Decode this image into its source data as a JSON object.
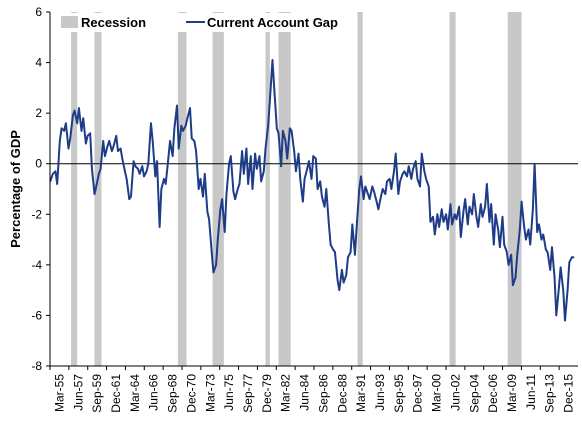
{
  "chart_data": {
    "type": "line",
    "ylabel": "Percentage of GDP",
    "ylim": [
      -8,
      6
    ],
    "yticks": [
      6,
      4,
      2,
      0,
      -2,
      -4,
      -6,
      -8
    ],
    "xlim": [
      1955.17,
      2016.0
    ],
    "xtick_labels": [
      "Mar-55",
      "Jun-57",
      "Sep-59",
      "Dec-61",
      "Mar-64",
      "Jun-66",
      "Sep-68",
      "Dec-70",
      "Mar-73",
      "Jun-75",
      "Sep-77",
      "Dec-79",
      "Mar-82",
      "Jun-84",
      "Sep-86",
      "Dec-88",
      "Mar-91",
      "Jun-93",
      "Sep-95",
      "Dec-97",
      "Mar-00",
      "Jun-02",
      "Sep-04",
      "Dec-06",
      "Mar-09",
      "Jun-11",
      "Sep-13",
      "Dec-15"
    ],
    "legend": {
      "position": "top-left",
      "items": [
        {
          "name": "Recession",
          "kind": "band",
          "color": "#c8c8c8"
        },
        {
          "name": "Current Account Gap",
          "kind": "line",
          "color": "#1f3c88"
        }
      ]
    },
    "grid": false,
    "recessions": [
      {
        "start": 1957.6,
        "end": 1958.3
      },
      {
        "start": 1960.3,
        "end": 1961.1
      },
      {
        "start": 1969.9,
        "end": 1970.9
      },
      {
        "start": 1973.9,
        "end": 1975.2
      },
      {
        "start": 1980.0,
        "end": 1980.5
      },
      {
        "start": 1981.5,
        "end": 1982.9
      },
      {
        "start": 1990.6,
        "end": 1991.2
      },
      {
        "start": 2001.2,
        "end": 2001.9
      },
      {
        "start": 2007.9,
        "end": 2009.5
      }
    ],
    "series": [
      {
        "name": "Current Account Gap",
        "color": "#1f3c88",
        "points": [
          [
            1955.2,
            -0.7
          ],
          [
            1955.5,
            -0.4
          ],
          [
            1955.8,
            -0.3
          ],
          [
            1956.0,
            -0.8
          ],
          [
            1956.3,
            0.9
          ],
          [
            1956.5,
            1.4
          ],
          [
            1956.8,
            1.3
          ],
          [
            1957.0,
            1.6
          ],
          [
            1957.3,
            0.6
          ],
          [
            1957.5,
            1.0
          ],
          [
            1957.8,
            1.9
          ],
          [
            1958.0,
            2.1
          ],
          [
            1958.3,
            1.6
          ],
          [
            1958.5,
            2.2
          ],
          [
            1958.8,
            1.3
          ],
          [
            1959.0,
            1.8
          ],
          [
            1959.3,
            0.8
          ],
          [
            1959.5,
            1.1
          ],
          [
            1959.8,
            1.2
          ],
          [
            1960.0,
            -0.2
          ],
          [
            1960.3,
            -1.2
          ],
          [
            1960.5,
            -0.9
          ],
          [
            1960.8,
            -0.4
          ],
          [
            1961.0,
            -0.2
          ],
          [
            1961.3,
            0.9
          ],
          [
            1961.5,
            0.3
          ],
          [
            1961.8,
            0.7
          ],
          [
            1962.0,
            0.9
          ],
          [
            1962.3,
            0.5
          ],
          [
            1962.5,
            0.7
          ],
          [
            1962.8,
            1.1
          ],
          [
            1963.0,
            0.5
          ],
          [
            1963.3,
            0.6
          ],
          [
            1963.5,
            0.2
          ],
          [
            1963.8,
            -0.3
          ],
          [
            1964.0,
            -0.6
          ],
          [
            1964.3,
            -1.4
          ],
          [
            1964.5,
            -1.3
          ],
          [
            1964.8,
            0.1
          ],
          [
            1965.0,
            -0.1
          ],
          [
            1965.3,
            -0.2
          ],
          [
            1965.5,
            -0.4
          ],
          [
            1965.8,
            -0.1
          ],
          [
            1966.0,
            -0.5
          ],
          [
            1966.3,
            -0.3
          ],
          [
            1966.5,
            0.0
          ],
          [
            1966.8,
            1.6
          ],
          [
            1967.0,
            0.9
          ],
          [
            1967.3,
            -0.5
          ],
          [
            1967.5,
            0.1
          ],
          [
            1967.8,
            -2.5
          ],
          [
            1968.0,
            -1.0
          ],
          [
            1968.3,
            -0.6
          ],
          [
            1968.5,
            -0.8
          ],
          [
            1968.8,
            0.2
          ],
          [
            1969.0,
            0.9
          ],
          [
            1969.3,
            0.3
          ],
          [
            1969.5,
            1.4
          ],
          [
            1969.8,
            2.3
          ],
          [
            1970.0,
            0.6
          ],
          [
            1970.3,
            1.5
          ],
          [
            1970.5,
            1.3
          ],
          [
            1970.8,
            1.5
          ],
          [
            1971.0,
            1.8
          ],
          [
            1971.3,
            2.2
          ],
          [
            1971.5,
            1.0
          ],
          [
            1971.8,
            0.9
          ],
          [
            1972.0,
            0.5
          ],
          [
            1972.3,
            -1.0
          ],
          [
            1972.5,
            -0.6
          ],
          [
            1972.8,
            -1.3
          ],
          [
            1973.0,
            -0.4
          ],
          [
            1973.3,
            -1.9
          ],
          [
            1973.5,
            -2.2
          ],
          [
            1973.8,
            -3.5
          ],
          [
            1974.0,
            -4.3
          ],
          [
            1974.3,
            -4.0
          ],
          [
            1974.5,
            -3.0
          ],
          [
            1974.8,
            -1.8
          ],
          [
            1975.0,
            -1.4
          ],
          [
            1975.3,
            -2.7
          ],
          [
            1975.5,
            -1.2
          ],
          [
            1975.8,
            0.0
          ],
          [
            1976.0,
            0.3
          ],
          [
            1976.3,
            -1.1
          ],
          [
            1976.5,
            -1.4
          ],
          [
            1976.8,
            -1.0
          ],
          [
            1977.0,
            -0.8
          ],
          [
            1977.3,
            0.5
          ],
          [
            1977.5,
            -0.4
          ],
          [
            1977.8,
            0.6
          ],
          [
            1978.0,
            -0.8
          ],
          [
            1978.3,
            0.3
          ],
          [
            1978.5,
            -1.0
          ],
          [
            1978.8,
            0.4
          ],
          [
            1979.0,
            -0.2
          ],
          [
            1979.3,
            0.3
          ],
          [
            1979.5,
            -0.7
          ],
          [
            1979.8,
            -0.3
          ],
          [
            1980.0,
            0.6
          ],
          [
            1980.3,
            1.5
          ],
          [
            1980.5,
            2.5
          ],
          [
            1980.8,
            4.1
          ],
          [
            1981.0,
            3.0
          ],
          [
            1981.3,
            1.4
          ],
          [
            1981.5,
            1.2
          ],
          [
            1981.8,
            -0.1
          ],
          [
            1982.0,
            1.3
          ],
          [
            1982.3,
            0.9
          ],
          [
            1982.5,
            0.2
          ],
          [
            1982.8,
            1.4
          ],
          [
            1983.0,
            1.3
          ],
          [
            1983.3,
            0.5
          ],
          [
            1983.5,
            -0.3
          ],
          [
            1983.8,
            0.4
          ],
          [
            1984.0,
            -0.6
          ],
          [
            1984.3,
            -1.5
          ],
          [
            1984.5,
            -0.6
          ],
          [
            1984.8,
            -0.2
          ],
          [
            1985.0,
            0.1
          ],
          [
            1985.3,
            -0.6
          ],
          [
            1985.5,
            0.3
          ],
          [
            1985.8,
            0.2
          ],
          [
            1986.0,
            -1.0
          ],
          [
            1986.3,
            -0.7
          ],
          [
            1986.5,
            -1.3
          ],
          [
            1986.8,
            -1.7
          ],
          [
            1987.0,
            -1.0
          ],
          [
            1987.3,
            -2.4
          ],
          [
            1987.5,
            -3.2
          ],
          [
            1987.8,
            -3.4
          ],
          [
            1988.0,
            -3.5
          ],
          [
            1988.3,
            -4.6
          ],
          [
            1988.5,
            -5.0
          ],
          [
            1988.8,
            -4.2
          ],
          [
            1989.0,
            -4.7
          ],
          [
            1989.3,
            -4.4
          ],
          [
            1989.5,
            -3.7
          ],
          [
            1989.8,
            -3.5
          ],
          [
            1990.0,
            -2.4
          ],
          [
            1990.3,
            -3.6
          ],
          [
            1990.5,
            -2.5
          ],
          [
            1990.8,
            -1.0
          ],
          [
            1991.0,
            -0.5
          ],
          [
            1991.3,
            -1.4
          ],
          [
            1991.5,
            -0.9
          ],
          [
            1991.8,
            -1.2
          ],
          [
            1992.0,
            -1.4
          ],
          [
            1992.3,
            -0.9
          ],
          [
            1992.5,
            -1.1
          ],
          [
            1992.8,
            -1.5
          ],
          [
            1993.0,
            -1.8
          ],
          [
            1993.3,
            -1.3
          ],
          [
            1993.5,
            -1.0
          ],
          [
            1993.8,
            -1.2
          ],
          [
            1994.0,
            -0.7
          ],
          [
            1994.3,
            -0.6
          ],
          [
            1994.5,
            -1.0
          ],
          [
            1994.8,
            -0.3
          ],
          [
            1995.0,
            0.4
          ],
          [
            1995.3,
            -1.2
          ],
          [
            1995.5,
            -0.7
          ],
          [
            1995.8,
            -0.4
          ],
          [
            1996.0,
            -0.3
          ],
          [
            1996.3,
            -0.5
          ],
          [
            1996.5,
            -0.1
          ],
          [
            1996.8,
            -0.6
          ],
          [
            1997.0,
            -0.2
          ],
          [
            1997.3,
            0.1
          ],
          [
            1997.5,
            -0.6
          ],
          [
            1997.8,
            -0.9
          ],
          [
            1998.0,
            0.4
          ],
          [
            1998.3,
            -0.3
          ],
          [
            1998.5,
            -0.6
          ],
          [
            1998.8,
            -0.9
          ],
          [
            1999.0,
            -2.3
          ],
          [
            1999.3,
            -2.1
          ],
          [
            1999.5,
            -2.8
          ],
          [
            1999.8,
            -2.0
          ],
          [
            2000.0,
            -2.5
          ],
          [
            2000.3,
            -1.8
          ],
          [
            2000.5,
            -2.3
          ],
          [
            2000.8,
            -2.0
          ],
          [
            2001.0,
            -2.6
          ],
          [
            2001.3,
            -1.6
          ],
          [
            2001.5,
            -2.4
          ],
          [
            2001.8,
            -2.0
          ],
          [
            2002.0,
            -2.2
          ],
          [
            2002.3,
            -1.7
          ],
          [
            2002.5,
            -2.9
          ],
          [
            2002.8,
            -1.9
          ],
          [
            2003.0,
            -1.4
          ],
          [
            2003.3,
            -2.4
          ],
          [
            2003.5,
            -1.7
          ],
          [
            2003.8,
            -2.0
          ],
          [
            2004.0,
            -1.2
          ],
          [
            2004.3,
            -2.1
          ],
          [
            2004.5,
            -2.5
          ],
          [
            2004.8,
            -1.6
          ],
          [
            2005.0,
            -2.1
          ],
          [
            2005.3,
            -1.7
          ],
          [
            2005.5,
            -0.8
          ],
          [
            2005.8,
            -2.3
          ],
          [
            2006.0,
            -1.6
          ],
          [
            2006.3,
            -3.2
          ],
          [
            2006.5,
            -2.0
          ],
          [
            2006.8,
            -2.6
          ],
          [
            2007.0,
            -3.3
          ],
          [
            2007.3,
            -2.1
          ],
          [
            2007.5,
            -3.2
          ],
          [
            2007.8,
            -3.5
          ],
          [
            2008.0,
            -4.0
          ],
          [
            2008.3,
            -3.6
          ],
          [
            2008.5,
            -4.8
          ],
          [
            2008.8,
            -4.5
          ],
          [
            2009.0,
            -3.6
          ],
          [
            2009.3,
            -2.6
          ],
          [
            2009.5,
            -1.5
          ],
          [
            2009.8,
            -2.5
          ],
          [
            2010.0,
            -3.0
          ],
          [
            2010.3,
            -2.6
          ],
          [
            2010.5,
            -3.2
          ],
          [
            2010.8,
            -1.8
          ],
          [
            2011.0,
            0.0
          ],
          [
            2011.3,
            -2.7
          ],
          [
            2011.5,
            -2.4
          ],
          [
            2011.8,
            -3.0
          ],
          [
            2012.0,
            -2.8
          ],
          [
            2012.3,
            -3.4
          ],
          [
            2012.5,
            -3.5
          ],
          [
            2012.8,
            -4.2
          ],
          [
            2013.0,
            -3.3
          ],
          [
            2013.3,
            -4.5
          ],
          [
            2013.5,
            -6.0
          ],
          [
            2013.8,
            -4.9
          ],
          [
            2014.0,
            -4.1
          ],
          [
            2014.3,
            -5.0
          ],
          [
            2014.5,
            -6.2
          ],
          [
            2014.8,
            -5.0
          ],
          [
            2015.0,
            -3.9
          ],
          [
            2015.3,
            -3.7
          ],
          [
            2015.5,
            -3.7
          ]
        ]
      }
    ]
  }
}
